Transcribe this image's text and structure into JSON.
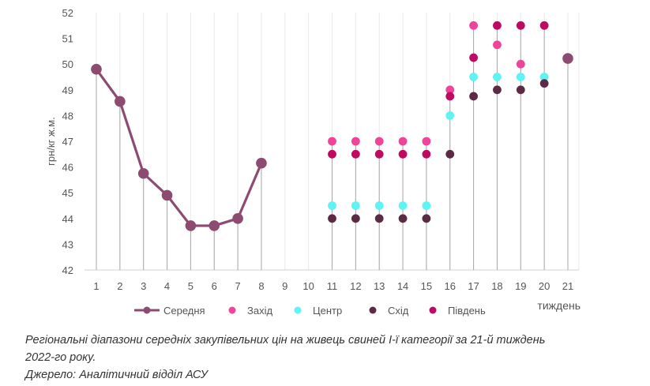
{
  "chart_data": {
    "type": "scatter",
    "ylabel": "грн/кг ж.м.",
    "xlabel": "тиждень",
    "ylim": [
      42,
      52
    ],
    "yticks": [
      42,
      43,
      44,
      45,
      46,
      47,
      48,
      49,
      50,
      51,
      52
    ],
    "xlim": [
      1,
      21
    ],
    "xticks": [
      "1",
      "2",
      "3",
      "4",
      "5",
      "6",
      "7",
      "8",
      "9",
      "10",
      "11",
      "12",
      "13",
      "14",
      "15",
      "16",
      "17",
      "18",
      "19",
      "20",
      "21"
    ],
    "grid": "vertical",
    "legend_position": "bottom",
    "series": [
      {
        "name": "Середня",
        "kind": "line",
        "color": "#8e4b72",
        "x": [
          1,
          2,
          3,
          4,
          5,
          6,
          7,
          8,
          21
        ],
        "y": [
          49.8,
          48.55,
          45.75,
          44.9,
          43.72,
          43.72,
          44.0,
          46.15,
          50.22
        ],
        "segments": [
          [
            0,
            7
          ]
        ]
      },
      {
        "name": "Захід",
        "kind": "dots",
        "color": "#f0449a",
        "x": [
          11,
          12,
          13,
          14,
          15,
          16,
          17,
          18,
          19
        ],
        "y": [
          47.0,
          47.0,
          47.0,
          47.0,
          47.0,
          49.0,
          51.5,
          50.75,
          50.0
        ]
      },
      {
        "name": "Центр",
        "kind": "dots",
        "color": "#5ff3f3",
        "x": [
          11,
          12,
          13,
          14,
          15,
          16,
          17,
          18,
          19,
          20
        ],
        "y": [
          44.5,
          44.5,
          44.5,
          44.5,
          44.5,
          48.0,
          49.5,
          49.5,
          49.5,
          49.5
        ]
      },
      {
        "name": "Схід",
        "kind": "dots",
        "color": "#5c2a45",
        "x": [
          11,
          12,
          13,
          14,
          15,
          16,
          17,
          18,
          19,
          20
        ],
        "y": [
          44.0,
          44.0,
          44.0,
          44.0,
          44.0,
          46.5,
          48.75,
          49.0,
          49.0,
          49.25
        ]
      },
      {
        "name": "Південь",
        "kind": "dots",
        "color": "#bf0a64",
        "x": [
          11,
          12,
          13,
          14,
          15,
          16,
          17,
          18,
          19,
          20
        ],
        "y": [
          46.5,
          46.5,
          46.5,
          46.5,
          46.5,
          48.75,
          50.25,
          51.5,
          51.5,
          51.5
        ]
      }
    ]
  },
  "caption": {
    "line1": "Регіональні діапазони середніх закупівельних цін на живець свиней І-ї категорії за 21-й тиждень",
    "line2": "2022-го року.",
    "line3": "Джерело: Аналітичний відділ АСУ"
  }
}
